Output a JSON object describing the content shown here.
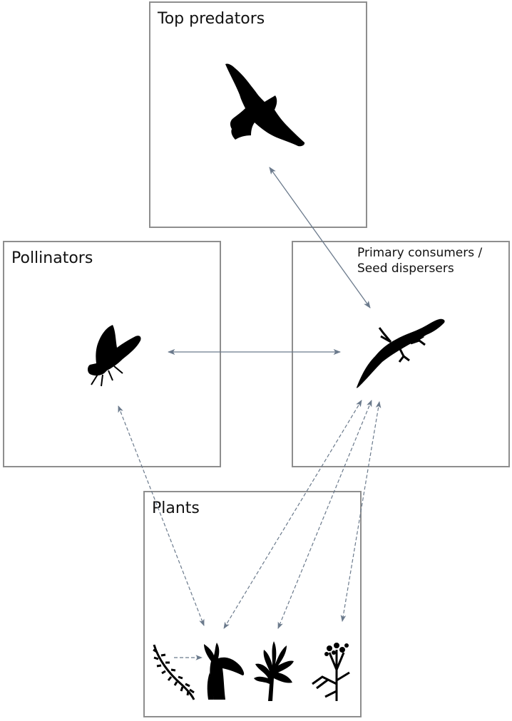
{
  "diagram": {
    "boxes": {
      "top_predators": {
        "title": "Top predators",
        "icon": "bird-of-prey-icon"
      },
      "pollinators": {
        "title": "Pollinators",
        "icon": "fly-icon"
      },
      "primary_consumers": {
        "title_line1": "Primary consumers /",
        "title_line2": "Seed dispersers",
        "icon": "lizard-icon"
      },
      "plants": {
        "title": "Plants",
        "icons": [
          "heather-plant-icon",
          "lily-plant-icon",
          "shrub-plant-icon",
          "umbellifer-plant-icon"
        ]
      }
    },
    "colors": {
      "border": "#8e8e8e",
      "arrow": "#6b7a8c",
      "silhouette": "#000000"
    }
  }
}
